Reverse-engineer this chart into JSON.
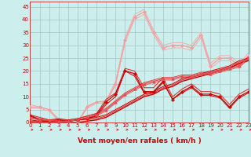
{
  "xlabel": "Vent moyen/en rafales ( km/h )",
  "xlim": [
    0,
    23
  ],
  "ylim": [
    0,
    47
  ],
  "yticks": [
    0,
    5,
    10,
    15,
    20,
    25,
    30,
    35,
    40,
    45
  ],
  "xticks": [
    0,
    1,
    2,
    3,
    4,
    5,
    6,
    7,
    8,
    9,
    10,
    11,
    12,
    13,
    14,
    15,
    16,
    17,
    18,
    19,
    20,
    21,
    22,
    23
  ],
  "bg_color": "#cceeed",
  "grid_color": "#99bbbb",
  "red_dark": "#cc0000",
  "red_mid": "#e06060",
  "red_light": "#f0a0a0",
  "series": [
    {
      "y": [
        2.5,
        1,
        0.5,
        1,
        0.5,
        1,
        1.5,
        3,
        8,
        11,
        20,
        19,
        12,
        12,
        16,
        9,
        12,
        14,
        11,
        11,
        10,
        6,
        10,
        12
      ],
      "color": "#cc0000",
      "lw": 0.9,
      "marker": "P",
      "ms": 2.5,
      "zorder": 4
    },
    {
      "y": [
        6,
        6,
        5,
        1,
        0,
        0,
        6,
        8,
        8,
        15,
        32,
        41,
        43,
        35,
        29,
        30,
        30,
        29,
        34,
        22,
        25,
        25,
        22,
        26
      ],
      "color": "#f0a0a0",
      "lw": 0.9,
      "marker": "D",
      "ms": 2.0,
      "zorder": 3
    },
    {
      "y": [
        7,
        6,
        5,
        1.5,
        0.5,
        0,
        6.5,
        8,
        8.5,
        16,
        33,
        42,
        44,
        36,
        30,
        31,
        31,
        30,
        35,
        23,
        26,
        26,
        23,
        27
      ],
      "color": "#f0b0b0",
      "lw": 0.7,
      "marker": null,
      "ms": 0,
      "zorder": 2
    },
    {
      "y": [
        5.5,
        5.5,
        4.5,
        0.5,
        0,
        0,
        5.5,
        7.5,
        7.5,
        14.5,
        31,
        40,
        42,
        34,
        28,
        29,
        29,
        28,
        33,
        21,
        24,
        24,
        21,
        25
      ],
      "color": "#f0b0b0",
      "lw": 0.7,
      "marker": null,
      "ms": 0,
      "zorder": 2
    },
    {
      "y": [
        2,
        1,
        0.8,
        0.5,
        0.5,
        1,
        2,
        3,
        5,
        8,
        11,
        13,
        15,
        16,
        17,
        17,
        18,
        18,
        19,
        19,
        20,
        21,
        22,
        25
      ],
      "color": "#e05050",
      "lw": 0.9,
      "marker": "^",
      "ms": 2.5,
      "zorder": 4
    },
    {
      "y": [
        1.5,
        1,
        0.5,
        0.5,
        0.5,
        1,
        1.5,
        2.5,
        4.5,
        7.5,
        10.5,
        12.5,
        14.5,
        15.5,
        16.5,
        16.5,
        17.5,
        17.5,
        18.5,
        18.5,
        19.5,
        20.5,
        21.5,
        24.5
      ],
      "color": "#e06060",
      "lw": 0.7,
      "marker": null,
      "ms": 0,
      "zorder": 3
    },
    {
      "y": [
        2.5,
        1.5,
        1,
        1,
        1,
        1.5,
        2.5,
        3.5,
        5.5,
        8.5,
        11.5,
        13.5,
        15.5,
        16.5,
        17.5,
        17.5,
        18.5,
        18.5,
        19.5,
        19.5,
        20.5,
        21.5,
        22.5,
        25.5
      ],
      "color": "#dd4444",
      "lw": 0.7,
      "marker": null,
      "ms": 0,
      "zorder": 3
    },
    {
      "y": [
        0,
        0,
        0,
        0,
        0,
        0,
        0.5,
        1,
        2,
        4,
        6,
        8,
        10,
        11,
        13,
        14,
        16,
        17,
        18,
        19,
        20,
        21,
        23,
        24
      ],
      "color": "#cc0000",
      "lw": 1.0,
      "marker": null,
      "ms": 0,
      "zorder": 3
    },
    {
      "y": [
        0.5,
        0.5,
        0.5,
        0.5,
        0.5,
        1,
        1,
        1.5,
        2.5,
        4.5,
        6.5,
        8.5,
        10.5,
        11.5,
        13.5,
        14.5,
        16.5,
        17.5,
        18.5,
        19.5,
        20.5,
        21.5,
        23.5,
        24.5
      ],
      "color": "#dd3333",
      "lw": 0.7,
      "marker": null,
      "ms": 0,
      "zorder": 3
    },
    {
      "y": [
        1,
        0.5,
        0.5,
        0.5,
        0.5,
        1,
        1.5,
        2,
        3,
        5,
        7,
        9,
        11,
        12,
        14,
        15,
        17,
        18,
        19,
        20,
        21,
        22,
        24,
        25
      ],
      "color": "#cc0000",
      "lw": 0.7,
      "marker": null,
      "ms": 0,
      "zorder": 3
    },
    {
      "y": [
        3,
        1,
        0.5,
        0.5,
        0.5,
        1,
        1.5,
        2.5,
        7,
        10,
        20,
        18,
        11.5,
        11.5,
        15.5,
        9,
        11.5,
        13.5,
        10.5,
        10.5,
        9.5,
        5.5,
        9.5,
        11.5
      ],
      "color": "#cc0000",
      "lw": 0.7,
      "marker": null,
      "ms": 0,
      "zorder": 3
    },
    {
      "y": [
        3,
        2,
        1,
        1.5,
        1,
        1.5,
        2.5,
        3.5,
        9,
        11.5,
        21,
        20,
        13.5,
        13.5,
        17.5,
        10,
        13,
        15,
        12,
        12,
        11,
        7,
        11,
        13
      ],
      "color": "#dd2222",
      "lw": 0.7,
      "marker": null,
      "ms": 0,
      "zorder": 3
    }
  ],
  "tick_fontsize": 5.0,
  "xlabel_fontsize": 6.5
}
